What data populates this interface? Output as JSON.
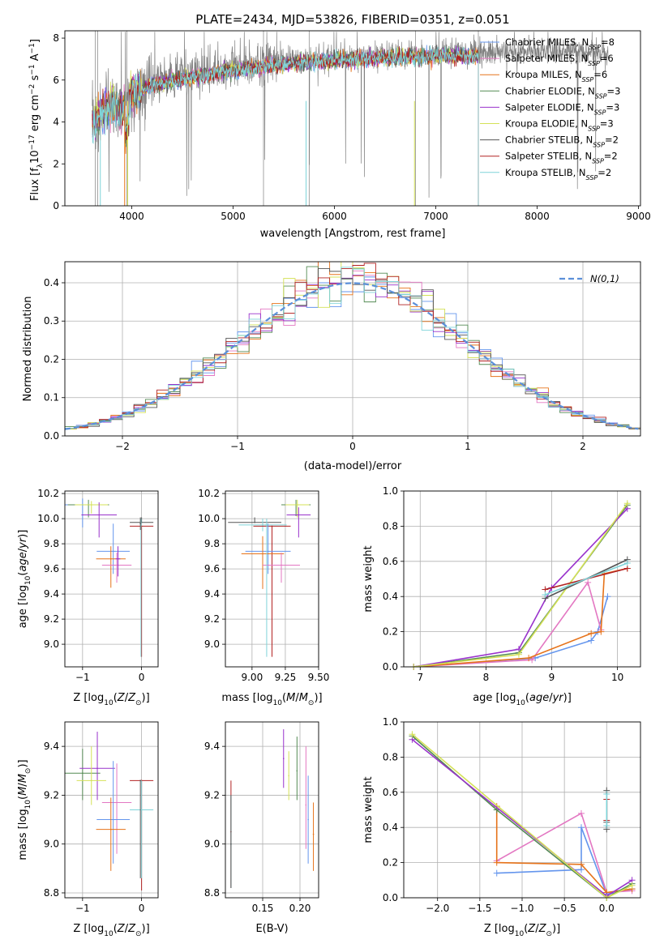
{
  "figure": {
    "title": "PLATE=2434, MJD=53826, FIBERID=0351, z=0.051"
  },
  "chart_data": [
    {
      "id": "spectrum",
      "type": "line",
      "xlabel": "wavelength [Angstrom, rest frame]",
      "ylabel": "Flux [fλ10⁻¹⁷ erg cm⁻² s⁻¹ A⁻¹]",
      "xlim": [
        3340,
        9020
      ],
      "ylim": [
        0,
        8.35
      ],
      "xticks": [
        4000,
        5000,
        6000,
        7000,
        8000,
        9000
      ],
      "yticks": [
        0,
        2,
        4,
        6,
        8
      ],
      "grid": false,
      "legend_position": "top-right",
      "data_range_x": [
        3610,
        8700
      ],
      "model_range_x": [
        3610,
        7420
      ],
      "continuum": [
        [
          3610,
          4.0
        ],
        [
          3700,
          4.6
        ],
        [
          3800,
          4.9
        ],
        [
          3900,
          4.6
        ],
        [
          4000,
          5.4
        ],
        [
          4200,
          5.9
        ],
        [
          4500,
          6.2
        ],
        [
          5000,
          6.6
        ],
        [
          5500,
          6.9
        ],
        [
          6000,
          7.1
        ],
        [
          6500,
          7.2
        ],
        [
          7000,
          7.3
        ],
        [
          7400,
          7.3
        ],
        [
          8000,
          7.35
        ],
        [
          8700,
          7.3
        ]
      ],
      "legend": [
        {
          "label": "Chabrier MILES, N",
          "sub": "SSP",
          "suffix": "=8",
          "color": "#6495ed"
        },
        {
          "label": "Salpeter MILES, N",
          "sub": "SSP",
          "suffix": "=6",
          "color": "#e377c2"
        },
        {
          "label": "Kroupa MILES, N",
          "sub": "SSP",
          "suffix": "=6",
          "color": "#e6731a"
        },
        {
          "label": "Chabrier ELODIE, N",
          "sub": "SSP",
          "suffix": "=3",
          "color": "#548b54"
        },
        {
          "label": "Salpeter ELODIE, N",
          "sub": "SSP",
          "suffix": "=3",
          "color": "#9932cc"
        },
        {
          "label": "Kroupa ELODIE, N",
          "sub": "SSP",
          "suffix": "=3",
          "color": "#d4e157"
        },
        {
          "label": "Chabrier STELIB, N",
          "sub": "SSP",
          "suffix": "=2",
          "color": "#555555"
        },
        {
          "label": "Salpeter STELIB, N",
          "sub": "SSP",
          "suffix": "=2",
          "color": "#b22222"
        },
        {
          "label": "Kroupa STELIB, N",
          "sub": "SSP",
          "suffix": "=2",
          "color": "#7fd4d9"
        }
      ]
    },
    {
      "id": "residuals",
      "type": "line",
      "xlabel": "(data-model)/error",
      "ylabel": "Normed distribution",
      "xlim": [
        -2.5,
        2.5
      ],
      "ylim": [
        0,
        0.455
      ],
      "xticks": [
        -2,
        -1,
        0,
        1,
        2
      ],
      "yticks": [
        0.0,
        0.1,
        0.2,
        0.3,
        0.4
      ],
      "grid": true,
      "legend_position": "top-right",
      "gaussian_label": "N(0,1)",
      "bin_width": 0.1
    },
    {
      "id": "age-Z",
      "type": "scatter",
      "xlabel": "Z [log10(Z/Z⊙)]",
      "ylabel": "age  [log10(age/yr)]",
      "xlim": [
        -1.3,
        0.28
      ],
      "ylim": [
        8.82,
        10.22
      ],
      "xticks": [
        -1,
        0
      ],
      "yticks": [
        9.0,
        9.2,
        9.4,
        9.6,
        9.8,
        10.0,
        10.2
      ],
      "grid": true,
      "points": [
        {
          "x": -1.0,
          "y": 10.11,
          "xerr": 0.35,
          "yerr": [
            0.18,
            0.05
          ],
          "color": "#6495ed"
        },
        {
          "x": -0.9,
          "y": 10.11,
          "xerr": 0.35,
          "yerr": [
            0.1,
            0.04
          ],
          "color": "#548b54"
        },
        {
          "x": -0.85,
          "y": 10.11,
          "xerr": 0.28,
          "yerr": [
            0.07,
            0.03
          ],
          "color": "#d4e157"
        },
        {
          "x": -0.72,
          "y": 10.03,
          "xerr": 0.3,
          "yerr": [
            0.18,
            0.1
          ],
          "color": "#9932cc"
        },
        {
          "x": -0.48,
          "y": 9.74,
          "xerr": 0.28,
          "yerr": [
            0.18,
            0.22
          ],
          "color": "#6495ed"
        },
        {
          "x": -0.52,
          "y": 9.68,
          "xerr": 0.25,
          "yerr": [
            0.23,
            0.1
          ],
          "color": "#e6731a"
        },
        {
          "x": -0.42,
          "y": 9.63,
          "xerr": 0.25,
          "yerr": [
            0.14,
            0.1
          ],
          "color": "#e377c2"
        },
        {
          "x": -0.4,
          "y": 9.68,
          "xerr": 0.04,
          "yerr": [
            0.14,
            0.1
          ],
          "color": "#9932cc"
        },
        {
          "x": 0.0,
          "y": 9.97,
          "xerr": 0.2,
          "yerr": [
            0.0,
            0.04
          ],
          "color": "#555555"
        },
        {
          "x": 0.0,
          "y": 9.94,
          "xerr": 0.2,
          "yerr": [
            1.04,
            0.0
          ],
          "color": "#b22222"
        },
        {
          "x": -0.01,
          "y": 9.95,
          "xerr": 0.01,
          "yerr": [
            1.05,
            0.05
          ],
          "color": "#7fd4d9"
        },
        {
          "x": -0.02,
          "y": 9.96,
          "xerr": 0.01,
          "yerr": [
            0.05,
            0.05
          ],
          "color": "#555555"
        }
      ]
    },
    {
      "id": "age-mass",
      "type": "scatter",
      "xlabel": "mass [log10(M/M⊙)]",
      "ylabel": "",
      "xlim": [
        8.8,
        9.5
      ],
      "ylim": [
        8.82,
        10.22
      ],
      "xticks": [
        9.0,
        9.25,
        9.5
      ],
      "xticklabels": [
        "9.00",
        "9.25",
        "9.50"
      ],
      "yticks": [
        9.0,
        9.2,
        9.4,
        9.6,
        9.8,
        10.0,
        10.2
      ],
      "grid": true,
      "points": [
        {
          "x": 9.33,
          "y": 10.11,
          "xerr": 0.11,
          "yerr": [
            0.09,
            0.04
          ],
          "color": "#548b54"
        },
        {
          "x": 9.34,
          "y": 10.11,
          "xerr": 0.09,
          "yerr": [
            0.1,
            0.04
          ],
          "color": "#d4e157"
        },
        {
          "x": 9.35,
          "y": 10.03,
          "xerr": 0.09,
          "yerr": [
            0.18,
            0.06
          ],
          "color": "#9932cc"
        },
        {
          "x": 9.02,
          "y": 9.97,
          "xerr": 0.2,
          "yerr": [
            0.0,
            0.04
          ],
          "color": "#555555"
        },
        {
          "x": 9.08,
          "y": 9.95,
          "xerr": 0.18,
          "yerr": [
            0.05,
            0.05
          ],
          "color": "#7fd4d9"
        },
        {
          "x": 9.15,
          "y": 9.94,
          "xerr": 0.14,
          "yerr": [
            1.04,
            0.0
          ],
          "color": "#b22222"
        },
        {
          "x": 9.12,
          "y": 9.74,
          "xerr": 0.17,
          "yerr": [
            0.18,
            0.22
          ],
          "color": "#6495ed"
        },
        {
          "x": 9.08,
          "y": 9.72,
          "xerr": 0.16,
          "yerr": [
            0.28,
            0.14
          ],
          "color": "#e6731a"
        },
        {
          "x": 9.22,
          "y": 9.63,
          "xerr": 0.14,
          "yerr": [
            0.14,
            0.1
          ],
          "color": "#e377c2"
        },
        {
          "x": 9.11,
          "y": 9.95,
          "xerr": 0.01,
          "yerr": [
            1.05,
            0.05
          ],
          "color": "#7fd4d9"
        }
      ]
    },
    {
      "id": "massweight-age",
      "type": "line",
      "xlabel": "age  [log10(age/yr)]",
      "ylabel": "mass weight",
      "xlim": [
        6.75,
        10.35
      ],
      "ylim": [
        0,
        1
      ],
      "xticks": [
        7,
        8,
        9,
        10
      ],
      "yticks": [
        0.0,
        0.2,
        0.4,
        0.6,
        0.8,
        1.0
      ],
      "grid": true,
      "series": [
        {
          "color": "#6495ed",
          "x": [
            6.9,
            8.75,
            9.6,
            9.7,
            9.85
          ],
          "y": [
            0.0,
            0.05,
            0.15,
            0.2,
            0.4
          ]
        },
        {
          "color": "#e377c2",
          "x": [
            6.9,
            8.7,
            9.55,
            9.75
          ],
          "y": [
            0.0,
            0.04,
            0.48,
            0.21
          ]
        },
        {
          "color": "#e6731a",
          "x": [
            6.9,
            8.65,
            9.6,
            9.75,
            9.8,
            10.15
          ],
          "y": [
            0.0,
            0.05,
            0.19,
            0.2,
            0.53,
            0.56
          ]
        },
        {
          "color": "#548b54",
          "x": [
            6.9,
            8.5,
            10.15
          ],
          "y": [
            0.0,
            0.08,
            0.92
          ]
        },
        {
          "color": "#9932cc",
          "x": [
            6.9,
            8.5,
            9.0,
            10.15
          ],
          "y": [
            0.0,
            0.1,
            0.45,
            0.9
          ]
        },
        {
          "color": "#d4e157",
          "x": [
            6.9,
            8.5,
            10.15
          ],
          "y": [
            0.0,
            0.07,
            0.93
          ]
        },
        {
          "color": "#555555",
          "x": [
            8.9,
            10.15
          ],
          "y": [
            0.39,
            0.61
          ]
        },
        {
          "color": "#b22222",
          "x": [
            8.9,
            10.15
          ],
          "y": [
            0.44,
            0.56
          ]
        },
        {
          "color": "#7fd4d9",
          "x": [
            8.9,
            10.15
          ],
          "y": [
            0.41,
            0.59
          ]
        }
      ]
    },
    {
      "id": "mass-Z",
      "type": "scatter",
      "xlabel": "Z [log10(Z/Z⊙)]",
      "ylabel": "mass [log10(M/M⊙)]",
      "xlim": [
        -1.3,
        0.28
      ],
      "ylim": [
        8.78,
        9.5
      ],
      "xticks": [
        -1,
        0
      ],
      "yticks": [
        8.8,
        9.0,
        9.2,
        9.4
      ],
      "grid": true,
      "points": [
        {
          "x": -1.0,
          "y": 9.29,
          "xerr": 0.3,
          "yerr": [
            0.11,
            0.1
          ],
          "color": "#548b54"
        },
        {
          "x": -0.75,
          "y": 9.31,
          "xerr": 0.3,
          "yerr": [
            0.13,
            0.15
          ],
          "color": "#9932cc"
        },
        {
          "x": -0.85,
          "y": 9.26,
          "xerr": 0.25,
          "yerr": [
            0.1,
            0.14
          ],
          "color": "#d4e157"
        },
        {
          "x": -0.42,
          "y": 9.17,
          "xerr": 0.25,
          "yerr": [
            0.21,
            0.16
          ],
          "color": "#e377c2"
        },
        {
          "x": -0.48,
          "y": 9.1,
          "xerr": 0.28,
          "yerr": [
            0.18,
            0.24
          ],
          "color": "#6495ed"
        },
        {
          "x": -0.52,
          "y": 9.06,
          "xerr": 0.25,
          "yerr": [
            0.17,
            0.13
          ],
          "color": "#e6731a"
        },
        {
          "x": 0.0,
          "y": 9.26,
          "xerr": 0.2,
          "yerr": [
            0.45,
            0.0
          ],
          "color": "#b22222"
        },
        {
          "x": 0.0,
          "y": 9.14,
          "xerr": 0.2,
          "yerr": [
            0.28,
            0.12
          ],
          "color": "#7fd4d9"
        },
        {
          "x": -0.02,
          "y": 9.26,
          "xerr": 0.01,
          "yerr": [
            0.4,
            0.0
          ],
          "color": "#555555"
        }
      ]
    },
    {
      "id": "mass-EBV",
      "type": "scatter",
      "xlabel": "E(B-V)",
      "ylabel": "",
      "xlim": [
        0.1,
        0.225
      ],
      "ylim": [
        8.78,
        9.5
      ],
      "xticks": [
        0.15,
        0.2
      ],
      "xticklabels": [
        "0.15",
        "0.20"
      ],
      "yticks": [
        8.8,
        9.0,
        9.2,
        9.4
      ],
      "grid": true,
      "points": [
        {
          "x": 0.1075,
          "y": 9.05,
          "xerr": 0,
          "yerr": [
            0.23,
            0.21
          ],
          "color": "#b22222"
        },
        {
          "x": 0.1075,
          "y": 9.0,
          "xerr": 0,
          "yerr": [
            0.18,
            0.2
          ],
          "color": "#7fd4d9"
        },
        {
          "x": 0.1075,
          "y": 9.0,
          "xerr": 0,
          "yerr": [
            0.18,
            0.2
          ],
          "color": "#555555"
        },
        {
          "x": 0.178,
          "y": 9.35,
          "xerr": 0,
          "yerr": [
            0.12,
            0.12
          ],
          "color": "#9932cc"
        },
        {
          "x": 0.185,
          "y": 9.28,
          "xerr": 0,
          "yerr": [
            0.1,
            0.1
          ],
          "color": "#d4e157"
        },
        {
          "x": 0.196,
          "y": 9.3,
          "xerr": 0,
          "yerr": [
            0.12,
            0.14
          ],
          "color": "#548b54"
        },
        {
          "x": 0.208,
          "y": 9.16,
          "xerr": 0,
          "yerr": [
            0.18,
            0.24
          ],
          "color": "#e377c2"
        },
        {
          "x": 0.211,
          "y": 9.1,
          "xerr": 0,
          "yerr": [
            0.18,
            0.18
          ],
          "color": "#6495ed"
        },
        {
          "x": 0.218,
          "y": 9.04,
          "xerr": 0,
          "yerr": [
            0.15,
            0.13
          ],
          "color": "#e6731a"
        }
      ]
    },
    {
      "id": "massweight-Z",
      "type": "line",
      "xlabel": "Z [log10(Z/Z⊙)]",
      "ylabel": "mass weight",
      "xlim": [
        -2.4,
        0.4
      ],
      "ylim": [
        0,
        1
      ],
      "xticks": [
        -2.0,
        -1.5,
        -1.0,
        -0.5,
        0.0
      ],
      "xticklabels": [
        "−2.0",
        "−1.5",
        "−1.0",
        "−0.5",
        "0.0"
      ],
      "yticks": [
        0.0,
        0.2,
        0.4,
        0.6,
        0.8,
        1.0
      ],
      "grid": true,
      "series": [
        {
          "color": "#6495ed",
          "x": [
            -1.3,
            -0.3,
            -0.3,
            0.0,
            0.3
          ],
          "y": [
            0.14,
            0.16,
            0.4,
            0.02,
            0.05
          ]
        },
        {
          "color": "#e377c2",
          "x": [
            -1.3,
            -0.3,
            0.0,
            0.3
          ],
          "y": [
            0.21,
            0.48,
            0.03,
            0.04
          ]
        },
        {
          "color": "#e6731a",
          "x": [
            -1.3,
            -1.3,
            -0.3,
            0.0,
            0.3
          ],
          "y": [
            0.52,
            0.2,
            0.19,
            0.03,
            0.05
          ]
        },
        {
          "color": "#548b54",
          "x": [
            -2.3,
            -1.3,
            0.0,
            0.3
          ],
          "y": [
            0.92,
            0.5,
            0.0,
            0.08
          ]
        },
        {
          "color": "#9932cc",
          "x": [
            -2.3,
            0.0,
            0.3
          ],
          "y": [
            0.9,
            0.01,
            0.1
          ]
        },
        {
          "color": "#d4e157",
          "x": [
            -2.3,
            0.0,
            0.3
          ],
          "y": [
            0.93,
            0.0,
            0.07
          ]
        },
        {
          "color": "#555555",
          "x": [
            0.0,
            0.0,
            0.0
          ],
          "y": [
            0.39,
            0.43,
            0.61
          ]
        },
        {
          "color": "#b22222",
          "x": [
            0.0,
            0.0
          ],
          "y": [
            0.44,
            0.56
          ]
        },
        {
          "color": "#7fd4d9",
          "x": [
            0.0,
            0.0
          ],
          "y": [
            0.41,
            0.59
          ]
        }
      ]
    }
  ]
}
